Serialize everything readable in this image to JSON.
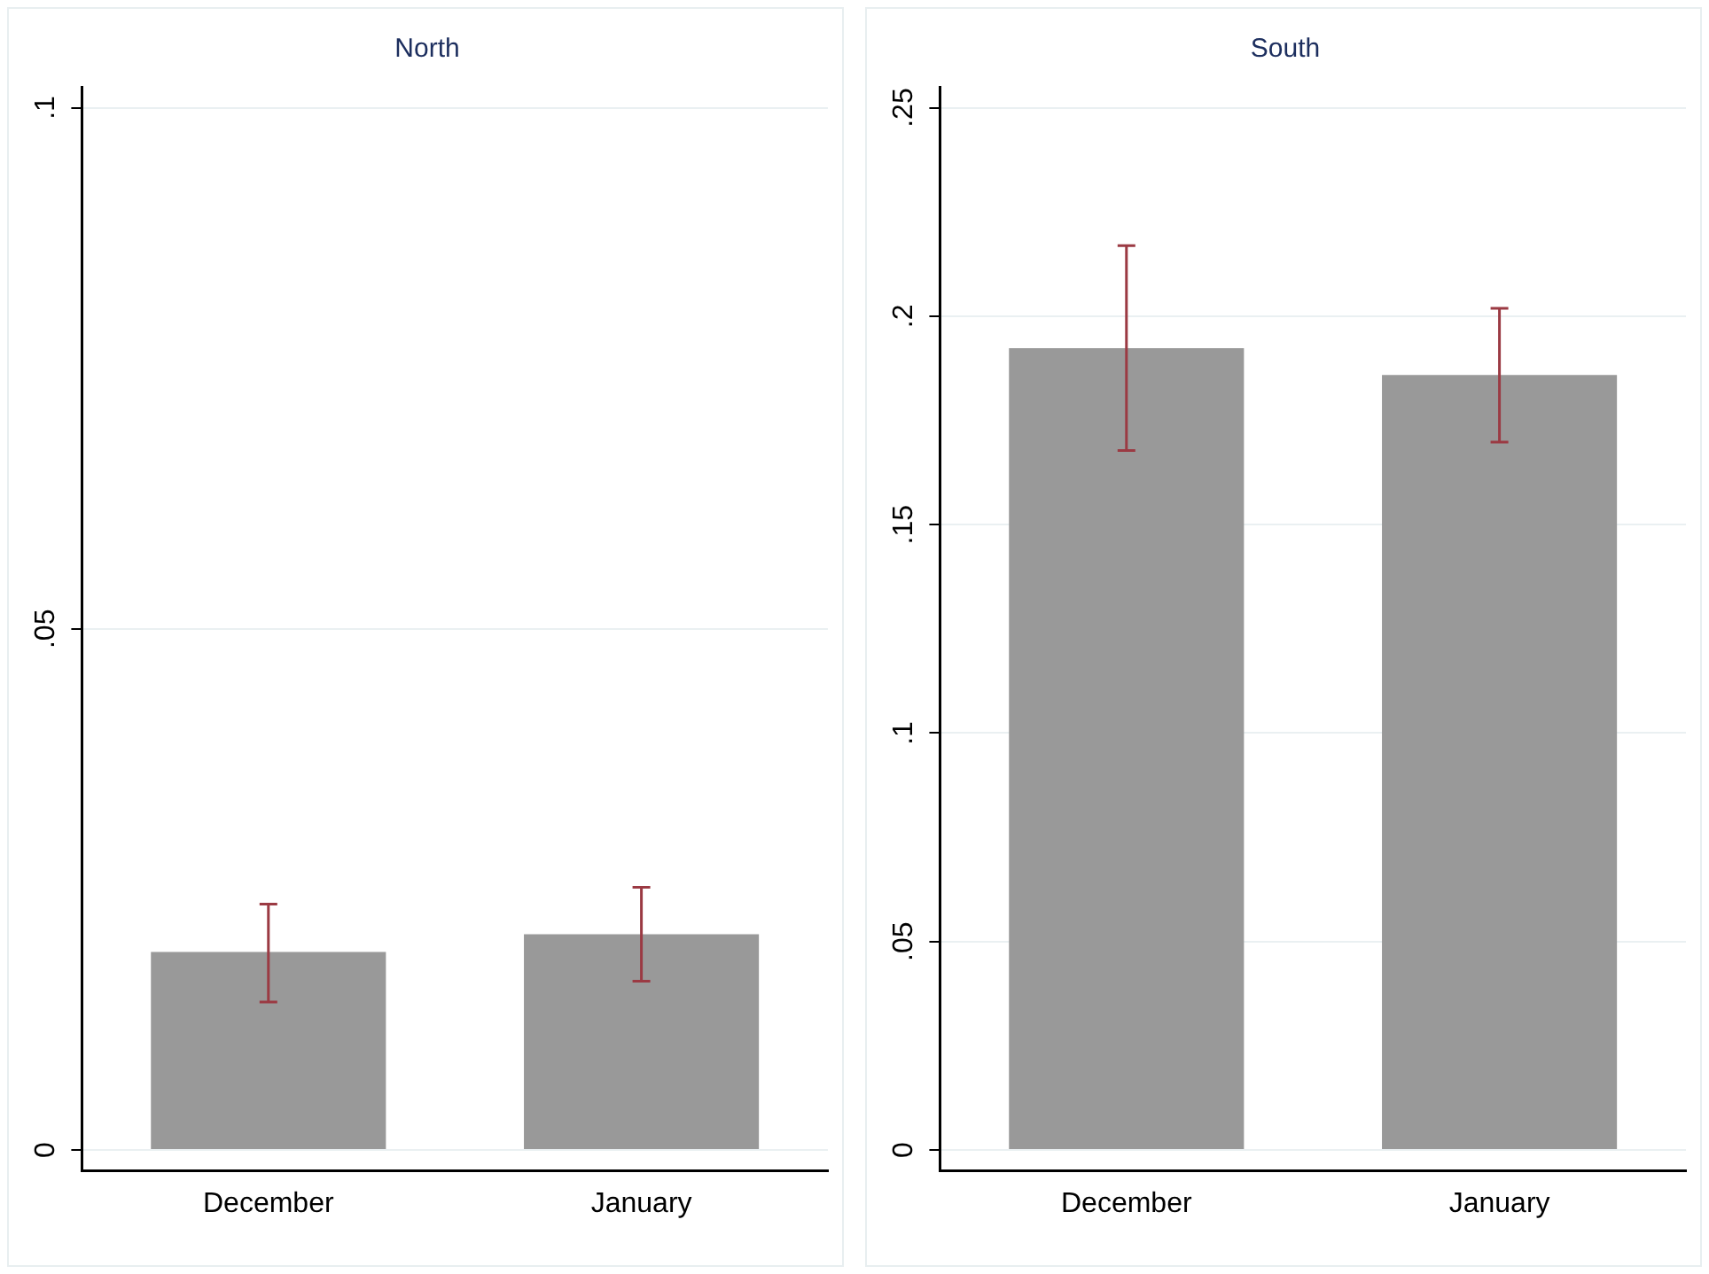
{
  "chart_data": [
    {
      "type": "bar",
      "title": "North",
      "categories": [
        "December",
        "January"
      ],
      "values": [
        0.019,
        0.0207
      ],
      "color": "#999999",
      "errors": [
        [
          0.0142,
          0.0236
        ],
        [
          0.0162,
          0.0252
        ]
      ],
      "ylim": [
        -0.002,
        0.102
      ],
      "yticks": [
        {
          "value": 0,
          "label": "0"
        },
        {
          "value": 0.05,
          "label": ".05"
        },
        {
          "value": 0.1,
          "label": ".1"
        }
      ],
      "grid": "y"
    },
    {
      "type": "bar",
      "title": "South",
      "categories": [
        "December",
        "January"
      ],
      "values": [
        0.1923,
        0.1859
      ],
      "color": "#999999",
      "errors": [
        [
          0.1678,
          0.2169
        ],
        [
          0.1698,
          0.2019
        ]
      ],
      "ylim": [
        -0.005,
        0.255
      ],
      "yticks": [
        {
          "value": 0,
          "label": "0"
        },
        {
          "value": 0.05,
          "label": ".05"
        },
        {
          "value": 0.1,
          "label": ".1"
        },
        {
          "value": 0.15,
          "label": ".15"
        },
        {
          "value": 0.2,
          "label": ".2"
        },
        {
          "value": 0.25,
          "label": ".25"
        }
      ],
      "grid": "y"
    }
  ]
}
